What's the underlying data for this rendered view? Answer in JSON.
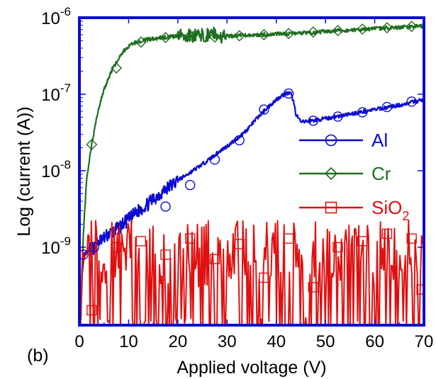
{
  "chart_data": {
    "type": "line",
    "title": "",
    "panel_label": "(b)",
    "xlabel": "Applied voltage (V)",
    "ylabel": "Log (current (A))",
    "xlim": [
      0,
      70
    ],
    "ylim": [
      1.2e-10,
      1e-06
    ],
    "y_scale": "log",
    "grid": false,
    "frame_color": "#0a0ad2",
    "x_ticks": [
      {
        "value": 0,
        "label": "0"
      },
      {
        "value": 10,
        "label": "10"
      },
      {
        "value": 20,
        "label": "20"
      },
      {
        "value": 30,
        "label": "30"
      },
      {
        "value": 40,
        "label": "40"
      },
      {
        "value": 50,
        "label": "50"
      },
      {
        "value": 60,
        "label": "60"
      },
      {
        "value": 70,
        "label": "70"
      }
    ],
    "y_ticks": [
      {
        "value": 1e-06,
        "base": "10",
        "exp": "-6"
      },
      {
        "value": 1e-07,
        "base": "10",
        "exp": "-7"
      },
      {
        "value": 1e-08,
        "base": "10",
        "exp": "-8"
      },
      {
        "value": 1e-09,
        "base": "10",
        "exp": "-9"
      }
    ],
    "legend_position": "right-center",
    "series": [
      {
        "name": "Al",
        "color": "#0a0ad2",
        "marker": "circle",
        "x": [
          0.5,
          1,
          2,
          3,
          4,
          5,
          6,
          7,
          8,
          10,
          12,
          14,
          16,
          18,
          20,
          22,
          24,
          26,
          28,
          30,
          32,
          34,
          36,
          38,
          40,
          41,
          42,
          42.5,
          43,
          43.5,
          44,
          45,
          47,
          50,
          55,
          60,
          65,
          70
        ],
        "y": [
          4e-10,
          8e-10,
          9e-10,
          1e-09,
          1.2e-09,
          1.3e-09,
          1.5e-09,
          1.6e-09,
          1.8e-09,
          2.3e-09,
          3e-09,
          3.7e-09,
          4.8e-09,
          6e-09,
          7.5e-09,
          9e-09,
          1.1e-08,
          1.35e-08,
          1.7e-08,
          2.1e-08,
          2.6e-08,
          3.4e-08,
          4.8e-08,
          6.5e-08,
          8.5e-08,
          9.5e-08,
          1.02e-07,
          1.03e-07,
          1e-07,
          8e-08,
          5.5e-08,
          4.3e-08,
          4.5e-08,
          4.8e-08,
          5.5e-08,
          6.3e-08,
          7.2e-08,
          8.5e-08
        ],
        "marker_x": [
          0.8,
          3,
          17.5,
          22.5,
          27.5,
          32.5,
          37.5,
          42.5,
          47.5,
          52.5,
          57.5,
          62.5,
          67.5
        ],
        "marker_y": [
          8e-10,
          1e-09,
          3.4e-09,
          6.5e-09,
          1.4e-08,
          2.5e-08,
          6.3e-08,
          1.02e-07,
          4.5e-08,
          5.1e-08,
          5.8e-08,
          6.8e-08,
          8e-08
        ],
        "noisy_range": [
          2,
          20
        ]
      },
      {
        "name": "Cr",
        "color": "#1f6e1f",
        "marker": "diamond",
        "x": [
          0.3,
          0.8,
          1.5,
          2.5,
          3.5,
          4.5,
          5.5,
          6.5,
          7.5,
          8.5,
          9.5,
          10.5,
          12,
          14,
          16,
          18,
          20,
          22,
          24,
          26,
          27,
          28,
          30,
          32,
          34,
          36,
          38,
          40,
          45,
          50,
          55,
          60,
          65,
          70
        ],
        "y": [
          1.2e-10,
          1.5e-09,
          8e-09,
          2.2e-08,
          5e-08,
          9e-08,
          1.4e-07,
          2e-07,
          2.6e-07,
          3.3e-07,
          4e-07,
          4.5e-07,
          4.9e-07,
          5.2e-07,
          5.4e-07,
          5.6e-07,
          5.7e-07,
          5.8e-07,
          5.9e-07,
          6e-07,
          6.6e-07,
          5.8e-07,
          5.7e-07,
          5.8e-07,
          5.9e-07,
          6e-07,
          6e-07,
          6.1e-07,
          6.3e-07,
          6.6e-07,
          6.9e-07,
          7.2e-07,
          7.5e-07,
          7.8e-07
        ],
        "marker_x": [
          2.5,
          7.5,
          12.5,
          17.5,
          22.5,
          27.5,
          32.5,
          37.5,
          42.5,
          47.5,
          52.5,
          57.5,
          62.5,
          67.5
        ],
        "marker_y": [
          2.2e-08,
          2.2e-07,
          4.8e-07,
          5.5e-07,
          5.8e-07,
          5.6e-07,
          5.8e-07,
          6e-07,
          6.2e-07,
          6.5e-07,
          6.8e-07,
          7.1e-07,
          7.4e-07,
          7.7e-07
        ],
        "noisy_range": [
          20,
          30
        ]
      },
      {
        "name": "SiO",
        "name_sub": "2",
        "color": "#e01010",
        "marker": "square",
        "x": [
          0,
          70
        ],
        "y_low": 1.2e-10,
        "y_high": 1.5e-09,
        "y_typical": 6e-10,
        "marker_x": [
          2.5,
          7.5,
          12.5,
          17.5,
          22.5,
          27.5,
          32.5,
          37.5,
          42.5,
          47.5,
          52.5,
          57.5,
          62.5,
          67.5,
          69.5
        ],
        "marker_y": [
          1.5e-10,
          1e-09,
          1.2e-09,
          8e-10,
          1.3e-09,
          7e-10,
          1.1e-09,
          4e-10,
          1.3e-09,
          3e-10,
          1e-09,
          1.2e-09,
          1.5e-09,
          1.3e-09,
          2.8e-10
        ]
      }
    ]
  }
}
